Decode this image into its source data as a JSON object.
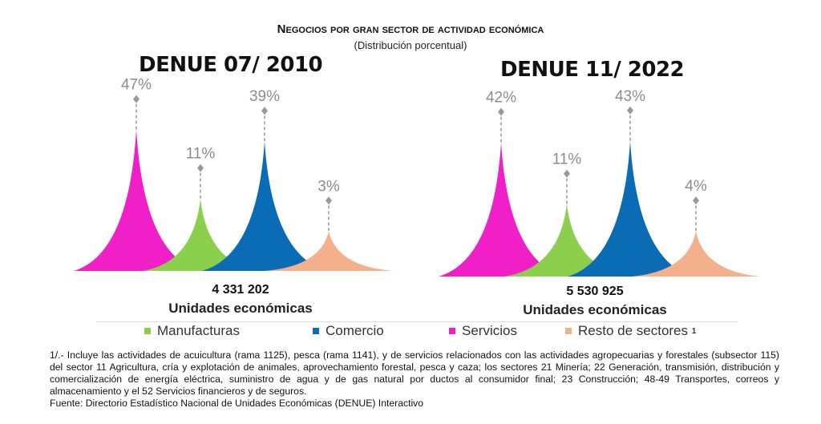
{
  "title": "Negocios por gran sector de actividad económica",
  "subtitle": "(Distribución porcentual)",
  "legend": [
    {
      "label": "Manufacturas",
      "color": "#8ccf4d"
    },
    {
      "label": "Comercio",
      "color": "#0a6cb5"
    },
    {
      "label": "Servicios",
      "color": "#f01fc8"
    },
    {
      "label": "Resto de sectores",
      "color": "#f3b08a",
      "note": "1"
    }
  ],
  "chart_data": [
    {
      "type": "area",
      "title": "DENUE 07/ 2010",
      "total": "4 331 202",
      "total_label": "Unidades económicas",
      "series": [
        {
          "name": "Servicios",
          "value": 47,
          "label": "47%"
        },
        {
          "name": "Manufacturas",
          "value": 11,
          "label": "11%"
        },
        {
          "name": "Comercio",
          "value": 39,
          "label": "39%"
        },
        {
          "name": "Resto de sectores",
          "value": 3,
          "label": "3%"
        }
      ]
    },
    {
      "type": "area",
      "title": "DENUE 11/ 2022",
      "total": "5 530 925",
      "total_label": "Unidades económicas",
      "series": [
        {
          "name": "Servicios",
          "value": 42,
          "label": "42%"
        },
        {
          "name": "Manufacturas",
          "value": 11,
          "label": "11%"
        },
        {
          "name": "Comercio",
          "value": 43,
          "label": "43%"
        },
        {
          "name": "Resto de sectores",
          "value": 4,
          "label": "4%"
        }
      ]
    }
  ],
  "footnote": "1/.- Incluye las actividades de acuicultura (rama 1125), pesca (rama 1141), y de servicios relacionados con las actividades agropecuarias y forestales (subsector 115) del sector 11 Agricultura, cría y explotación de animales, aprovechamiento forestal, pesca y caza; los sectores 21 Minería; 22 Generación, transmisión, distribución y comercialización de energía eléctrica, suministro de agua y de gas natural por ductos al consumidor final; 23 Construcción; 48-49 Transportes, correos y almacenamiento y el 52 Servicios financieros y de seguros.",
  "source": "Fuente: Directorio Estadístico Nacional de Unidades Económicas (DENUE) Interactivo"
}
